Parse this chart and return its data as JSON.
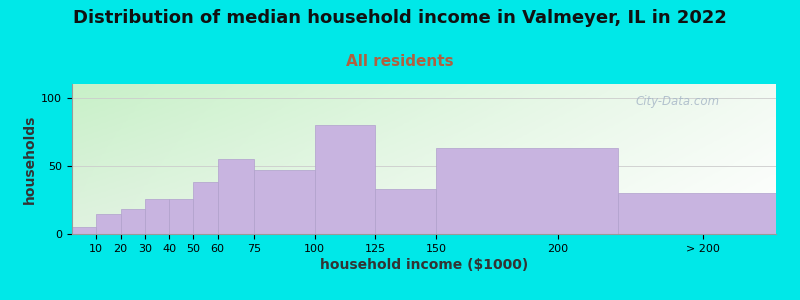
{
  "title": "Distribution of median household income in Valmeyer, IL in 2022",
  "subtitle": "All residents",
  "xlabel": "household income ($1000)",
  "ylabel": "households",
  "categories": [
    "10",
    "20",
    "30",
    "40",
    "50",
    "60",
    "75",
    "100",
    "125",
    "150",
    "200",
    "> 200"
  ],
  "values": [
    5,
    15,
    18,
    26,
    26,
    38,
    55,
    47,
    80,
    33,
    63,
    30
  ],
  "bar_color": "#c8b4e0",
  "bar_edgecolor": "#b0a0cc",
  "background_outer": "#00e8e8",
  "ylim": [
    0,
    110
  ],
  "yticks": [
    0,
    50,
    100
  ],
  "title_fontsize": 13,
  "subtitle_fontsize": 11,
  "subtitle_color": "#b06040",
  "axis_label_fontsize": 10,
  "tick_fontsize": 8,
  "watermark_text": "City-Data.com",
  "watermark_color": "#a8b8c8",
  "bin_lefts": [
    0,
    10,
    20,
    30,
    40,
    50,
    60,
    75,
    100,
    125,
    150,
    225
  ],
  "bin_rights": [
    10,
    20,
    30,
    40,
    50,
    60,
    75,
    100,
    125,
    150,
    225,
    290
  ],
  "tick_positions": [
    10,
    20,
    30,
    40,
    50,
    60,
    75,
    100,
    125,
    150,
    200,
    260
  ],
  "xlim": [
    0,
    290
  ]
}
